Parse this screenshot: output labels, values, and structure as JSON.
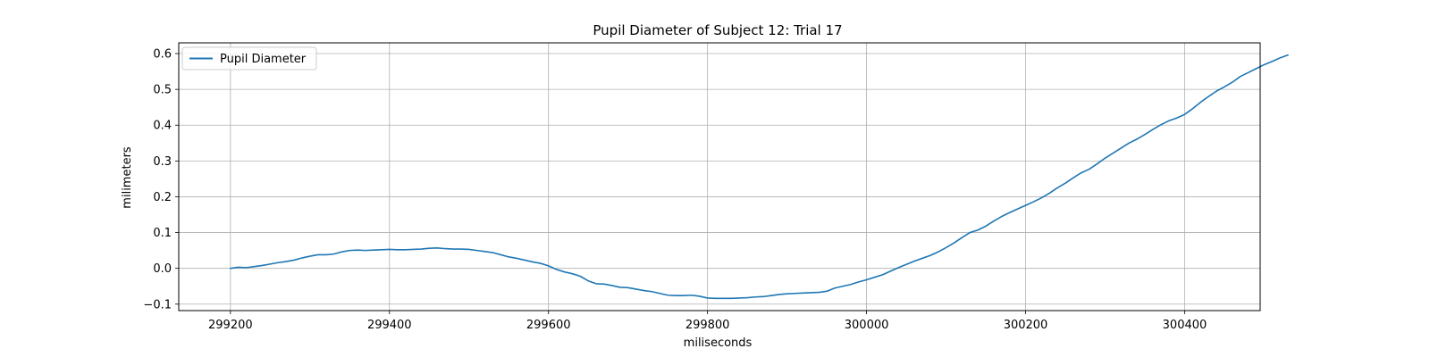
{
  "chart_data": {
    "type": "line",
    "title": "Pupil Diameter of Subject 12: Trial 17",
    "xlabel": "miliseconds",
    "ylabel": "milimeters",
    "xlim": [
      299135,
      300495
    ],
    "ylim": [
      -0.118,
      0.63
    ],
    "xticks": [
      299200,
      299400,
      299600,
      299800,
      300000,
      300200,
      300400
    ],
    "xtick_labels": [
      "299200",
      "299400",
      "299600",
      "299800",
      "300000",
      "300200",
      "300400"
    ],
    "yticks": [
      -0.1,
      0.0,
      0.1,
      0.2,
      0.3,
      0.4,
      0.5,
      0.6
    ],
    "ytick_labels": [
      "−0.1",
      "0.0",
      "0.1",
      "0.2",
      "0.3",
      "0.4",
      "0.5",
      "0.6"
    ],
    "grid": true,
    "legend_position": "top-left",
    "series": [
      {
        "name": "Pupil Diameter",
        "color": "#1f77b4",
        "x": [
          299200,
          299210,
          299220,
          299230,
          299240,
          299250,
          299260,
          299270,
          299280,
          299290,
          299300,
          299310,
          299320,
          299330,
          299340,
          299350,
          299360,
          299370,
          299380,
          299390,
          299400,
          299410,
          299420,
          299430,
          299440,
          299450,
          299460,
          299470,
          299480,
          299490,
          299500,
          299510,
          299520,
          299530,
          299540,
          299550,
          299560,
          299570,
          299580,
          299590,
          299600,
          299610,
          299620,
          299630,
          299640,
          299650,
          299660,
          299670,
          299680,
          299690,
          299700,
          299710,
          299720,
          299730,
          299740,
          299750,
          299760,
          299770,
          299780,
          299790,
          299800,
          299810,
          299820,
          299830,
          299840,
          299850,
          299860,
          299870,
          299880,
          299890,
          299900,
          299910,
          299920,
          299930,
          299940,
          299950,
          299960,
          299970,
          299980,
          299990,
          300000,
          300010,
          300020,
          300030,
          300040,
          300050,
          300060,
          300070,
          300080,
          300090,
          300100,
          300110,
          300120,
          300130,
          300140,
          300150,
          300160,
          300170,
          300180,
          300190,
          300200,
          300210,
          300220,
          300230,
          300240,
          300250,
          300260,
          300270,
          300280,
          300290,
          300300,
          300310,
          300320,
          300330,
          300340,
          300350,
          300360,
          300370,
          300380,
          300390,
          300400,
          300410,
          300420,
          300430,
          300440,
          300450,
          300460,
          300470,
          300480,
          300490,
          300500,
          300510,
          300520,
          300530
        ],
        "y": [
          0.0,
          0.003,
          0.002,
          0.005,
          0.008,
          0.012,
          0.016,
          0.019,
          0.023,
          0.029,
          0.034,
          0.038,
          0.038,
          0.04,
          0.046,
          0.05,
          0.051,
          0.05,
          0.051,
          0.052,
          0.053,
          0.052,
          0.052,
          0.053,
          0.054,
          0.056,
          0.057,
          0.055,
          0.054,
          0.054,
          0.053,
          0.05,
          0.047,
          0.044,
          0.038,
          0.032,
          0.028,
          0.023,
          0.018,
          0.014,
          0.007,
          -0.003,
          -0.01,
          -0.015,
          -0.022,
          -0.035,
          -0.043,
          -0.044,
          -0.048,
          -0.053,
          -0.054,
          -0.058,
          -0.062,
          -0.065,
          -0.07,
          -0.075,
          -0.076,
          -0.076,
          -0.075,
          -0.078,
          -0.083,
          -0.084,
          -0.084,
          -0.084,
          -0.083,
          -0.082,
          -0.08,
          -0.079,
          -0.076,
          -0.073,
          -0.071,
          -0.07,
          -0.069,
          -0.068,
          -0.067,
          -0.064,
          -0.055,
          -0.05,
          -0.045,
          -0.038,
          -0.032,
          -0.025,
          -0.018,
          -0.008,
          0.002,
          0.011,
          0.02,
          0.028,
          0.036,
          0.046,
          0.058,
          0.071,
          0.086,
          0.1,
          0.107,
          0.118,
          0.132,
          0.145,
          0.156,
          0.166,
          0.176,
          0.186,
          0.197,
          0.21,
          0.225,
          0.238,
          0.253,
          0.267,
          0.277,
          0.292,
          0.308,
          0.322,
          0.336,
          0.35,
          0.361,
          0.374,
          0.388,
          0.401,
          0.412,
          0.42,
          0.43,
          0.446,
          0.464,
          0.48,
          0.495,
          0.507,
          0.52,
          0.536,
          0.547,
          0.558,
          0.569,
          0.578,
          0.588,
          0.596
        ]
      }
    ]
  }
}
